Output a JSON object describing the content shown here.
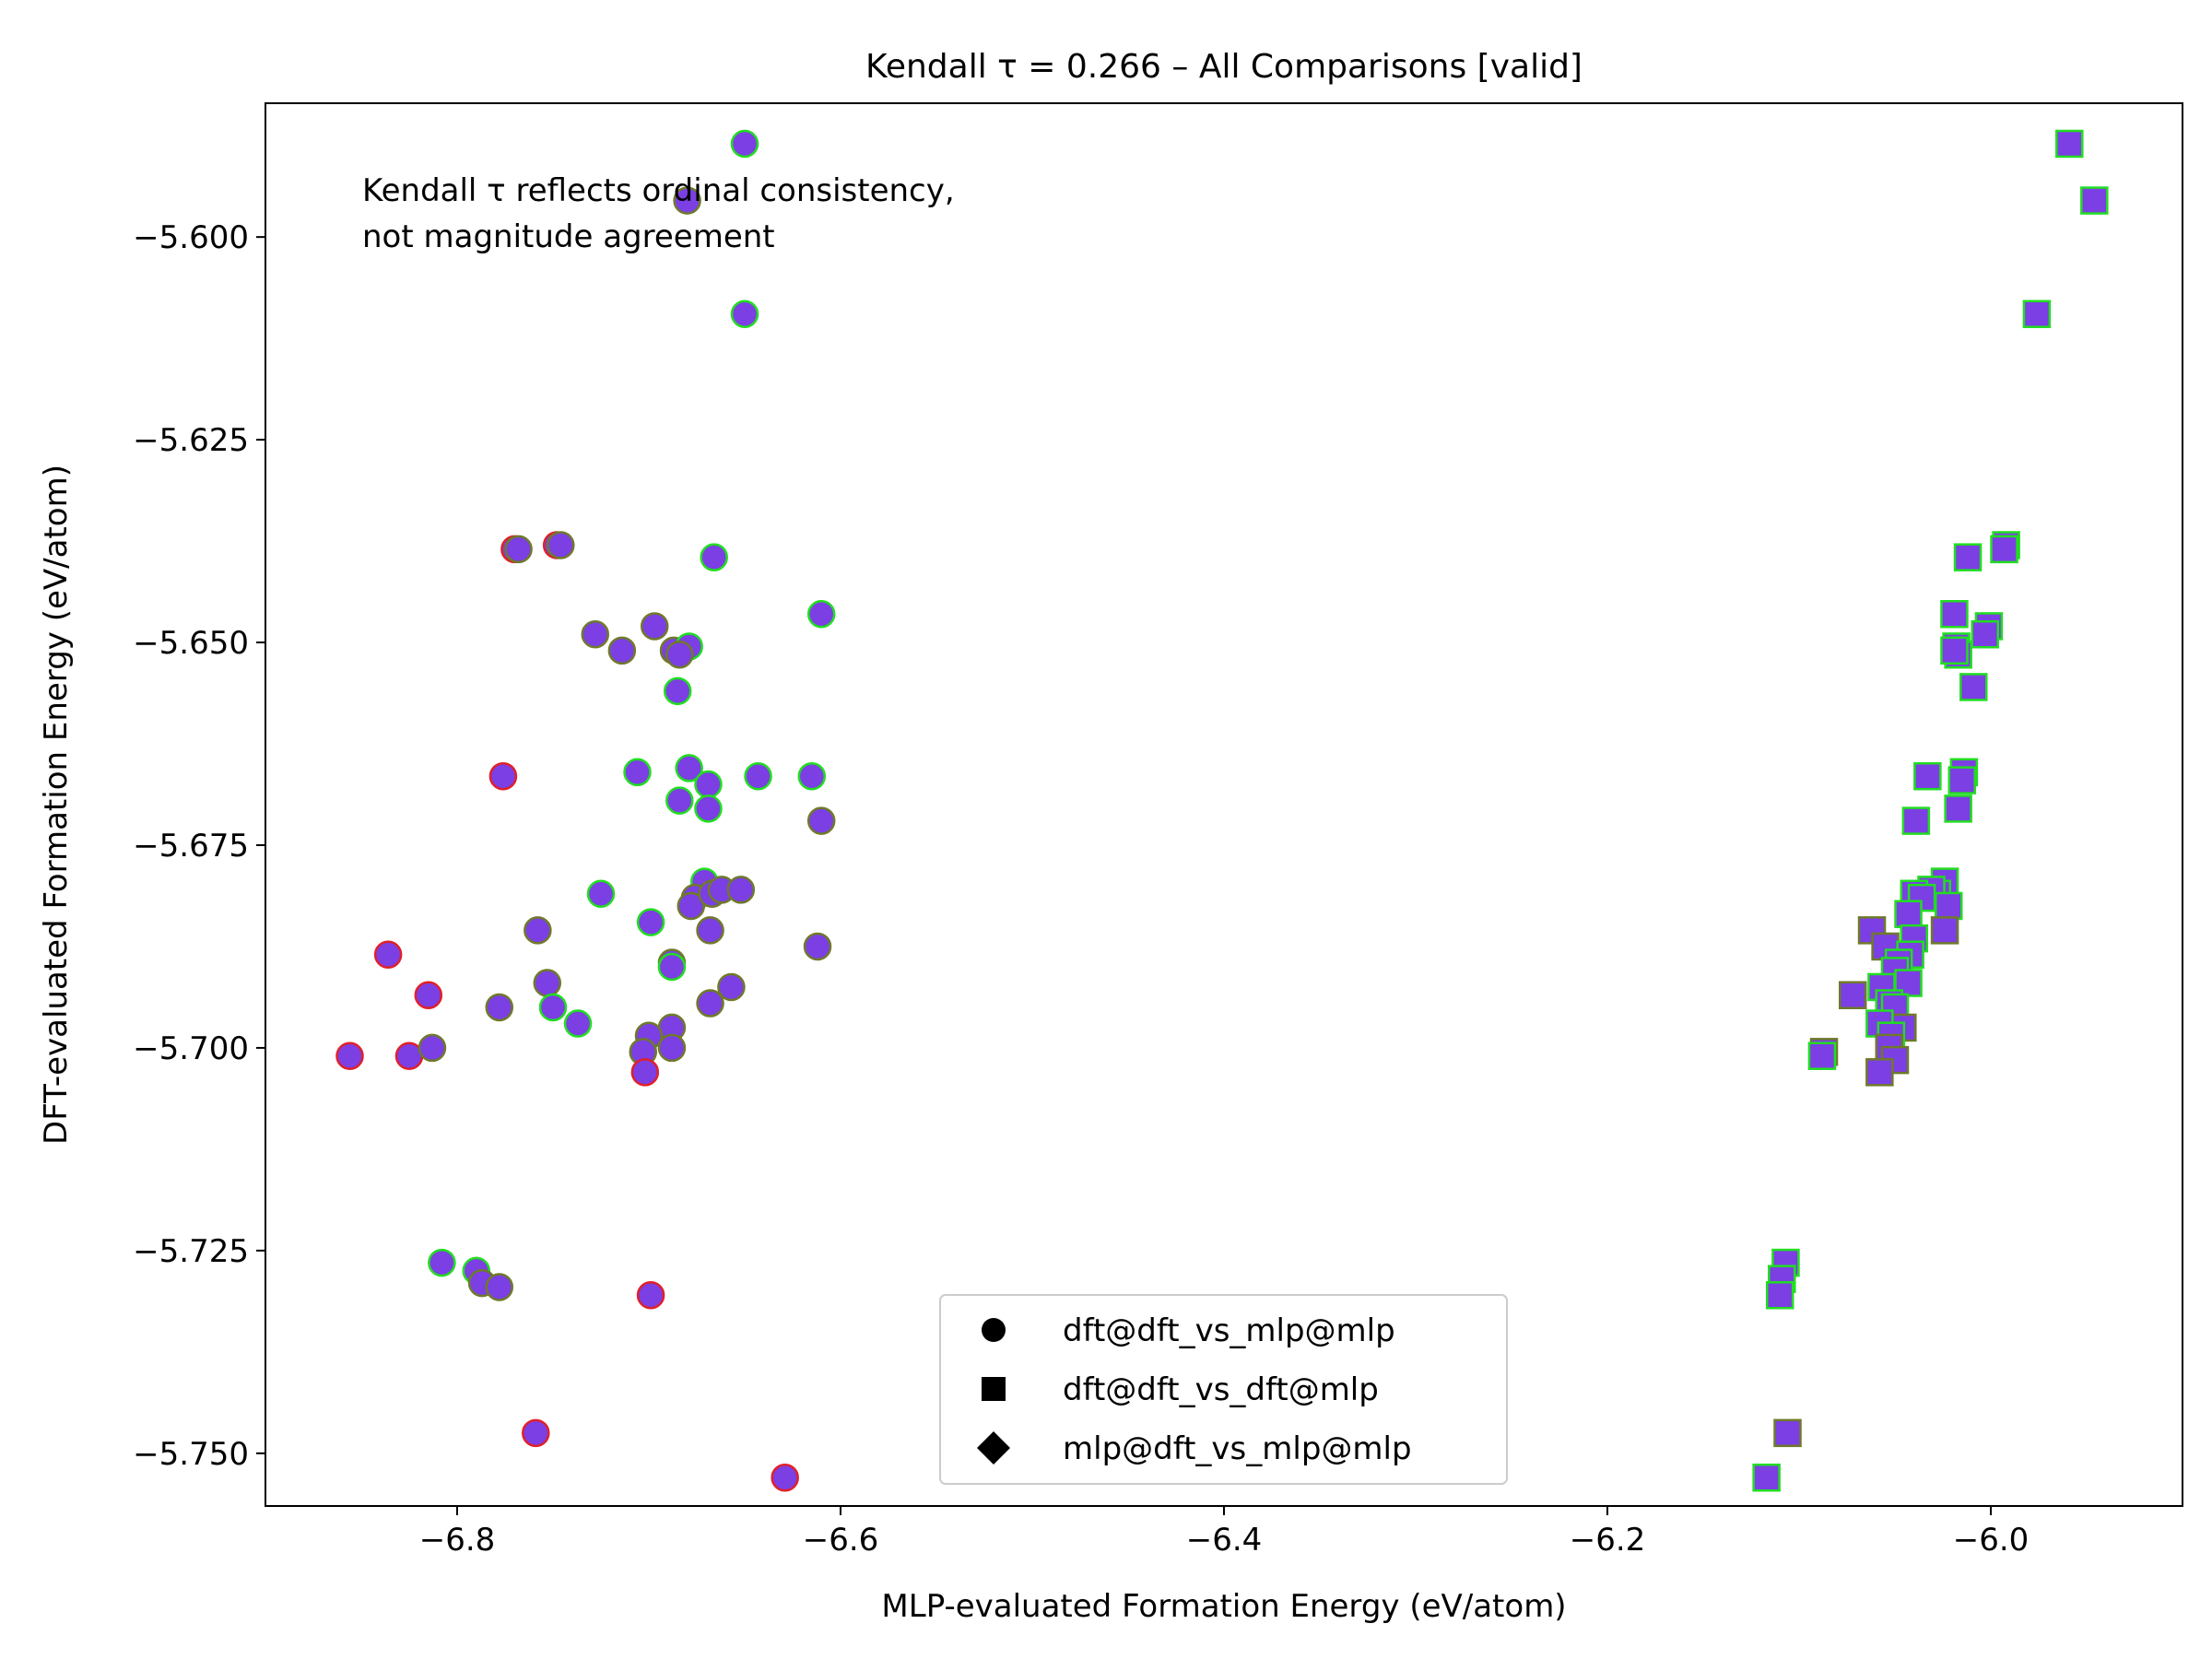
{
  "chart_data": {
    "type": "scatter",
    "title": "Kendall τ = 0.266 – All Comparisons [valid]",
    "xlabel": "MLP-evaluated Formation Energy (eV/atom)",
    "ylabel": "DFT-evaluated Formation Energy (eV/atom)",
    "xlim": [
      -6.9,
      -5.9
    ],
    "ylim": [
      -5.7565,
      -5.5835
    ],
    "xticks": [
      -6.8,
      -6.6,
      -6.4,
      -6.2,
      -6.0
    ],
    "xtick_labels": [
      "−6.8",
      "−6.6",
      "−6.4",
      "−6.2",
      "−6.0"
    ],
    "yticks": [
      -5.6,
      -5.625,
      -5.65,
      -5.675,
      -5.7,
      -5.725,
      -5.75
    ],
    "ytick_labels": [
      "−5.600",
      "−5.625",
      "−5.650",
      "−5.675",
      "−5.700",
      "−5.725",
      "−5.750"
    ],
    "grid": false,
    "legend_position": "bottom-center",
    "annotation": [
      "Kendall τ reflects ordinal consistency,",
      "not magnitude agreement"
    ],
    "fill_color": "#7b3fe4",
    "edge_colors": {
      "green": "#22dd22",
      "olive": "#6f7a2a",
      "red": "#e0202a"
    },
    "series": [
      {
        "name": "dft@dft_vs_mlp@mlp",
        "marker": "circle",
        "points": [
          [
            -6.65,
            -5.5885,
            "green"
          ],
          [
            -6.68,
            -5.5955,
            "olive"
          ],
          [
            -6.65,
            -5.6095,
            "green"
          ],
          [
            -6.77,
            -5.6385,
            "red"
          ],
          [
            -6.768,
            -5.6385,
            "olive"
          ],
          [
            -6.748,
            -5.638,
            "red"
          ],
          [
            -6.746,
            -5.638,
            "olive"
          ],
          [
            -6.666,
            -5.6395,
            "green"
          ],
          [
            -6.61,
            -5.6465,
            "green"
          ],
          [
            -6.728,
            -5.649,
            "olive"
          ],
          [
            -6.714,
            -5.651,
            "olive"
          ],
          [
            -6.697,
            -5.648,
            "olive"
          ],
          [
            -6.687,
            -5.651,
            "olive"
          ],
          [
            -6.679,
            -5.6505,
            "green"
          ],
          [
            -6.684,
            -5.6515,
            "olive"
          ],
          [
            -6.685,
            -5.656,
            "green"
          ],
          [
            -6.776,
            -5.6665,
            "red"
          ],
          [
            -6.706,
            -5.666,
            "green"
          ],
          [
            -6.679,
            -5.6655,
            "green"
          ],
          [
            -6.669,
            -5.6675,
            "green"
          ],
          [
            -6.684,
            -5.6695,
            "green"
          ],
          [
            -6.669,
            -5.6705,
            "green"
          ],
          [
            -6.643,
            -5.6665,
            "green"
          ],
          [
            -6.615,
            -5.6665,
            "green"
          ],
          [
            -6.61,
            -5.672,
            "olive"
          ],
          [
            -6.725,
            -5.681,
            "green"
          ],
          [
            -6.671,
            -5.6795,
            "green"
          ],
          [
            -6.676,
            -5.6815,
            "olive"
          ],
          [
            -6.678,
            -5.6825,
            "olive"
          ],
          [
            -6.667,
            -5.681,
            "olive"
          ],
          [
            -6.662,
            -5.6805,
            "olive"
          ],
          [
            -6.652,
            -5.6805,
            "olive"
          ],
          [
            -6.699,
            -5.6845,
            "green"
          ],
          [
            -6.668,
            -5.6855,
            "olive"
          ],
          [
            -6.758,
            -5.6855,
            "olive"
          ],
          [
            -6.612,
            -5.6875,
            "olive"
          ],
          [
            -6.836,
            -5.6885,
            "red"
          ],
          [
            -6.815,
            -5.6935,
            "red"
          ],
          [
            -6.688,
            -5.6895,
            "olive"
          ],
          [
            -6.688,
            -5.69,
            "green"
          ],
          [
            -6.753,
            -5.692,
            "olive"
          ],
          [
            -6.75,
            -5.695,
            "green"
          ],
          [
            -6.737,
            -5.697,
            "green"
          ],
          [
            -6.778,
            -5.695,
            "olive"
          ],
          [
            -6.668,
            -5.6945,
            "olive"
          ],
          [
            -6.657,
            -5.6925,
            "olive"
          ],
          [
            -6.688,
            -5.6975,
            "olive"
          ],
          [
            -6.7,
            -5.6985,
            "olive"
          ],
          [
            -6.703,
            -5.7005,
            "olive"
          ],
          [
            -6.702,
            -5.703,
            "red"
          ],
          [
            -6.688,
            -5.7,
            "olive"
          ],
          [
            -6.856,
            -5.701,
            "red"
          ],
          [
            -6.825,
            -5.701,
            "red"
          ],
          [
            -6.813,
            -5.7,
            "olive"
          ],
          [
            -6.808,
            -5.7265,
            "green"
          ],
          [
            -6.79,
            -5.7275,
            "green"
          ],
          [
            -6.787,
            -5.729,
            "olive"
          ],
          [
            -6.778,
            -5.7295,
            "olive"
          ],
          [
            -6.699,
            -5.7305,
            "red"
          ],
          [
            -6.759,
            -5.7475,
            "red"
          ],
          [
            -6.629,
            -5.753,
            "red"
          ]
        ]
      },
      {
        "name": "dft@dft_vs_dft@mlp",
        "marker": "square",
        "points": [
          [
            -5.959,
            -5.5885,
            "green"
          ],
          [
            -5.946,
            -5.5955,
            "green"
          ],
          [
            -5.976,
            -5.6095,
            "green"
          ],
          [
            -5.992,
            -5.638,
            "green"
          ],
          [
            -5.993,
            -5.6385,
            "green"
          ],
          [
            -6.012,
            -5.6395,
            "green"
          ],
          [
            -6.019,
            -5.6465,
            "green"
          ],
          [
            -6.001,
            -5.648,
            "green"
          ],
          [
            -6.003,
            -5.649,
            "green"
          ],
          [
            -6.018,
            -5.6505,
            "green"
          ],
          [
            -6.017,
            -5.6515,
            "green"
          ],
          [
            -6.019,
            -5.651,
            "green"
          ],
          [
            -6.009,
            -5.6555,
            "green"
          ],
          [
            -6.014,
            -5.666,
            "green"
          ],
          [
            -6.015,
            -5.667,
            "green"
          ],
          [
            -6.033,
            -5.6665,
            "green"
          ],
          [
            -6.017,
            -5.6705,
            "green"
          ],
          [
            -6.039,
            -5.672,
            "green"
          ],
          [
            -6.024,
            -5.6795,
            "green"
          ],
          [
            -6.028,
            -5.681,
            "green"
          ],
          [
            -6.031,
            -5.6805,
            "green"
          ],
          [
            -6.04,
            -5.681,
            "green"
          ],
          [
            -6.022,
            -5.6825,
            "green"
          ],
          [
            -6.036,
            -5.6815,
            "green"
          ],
          [
            -6.043,
            -5.6835,
            "green"
          ],
          [
            -6.024,
            -5.6855,
            "olive"
          ],
          [
            -6.062,
            -5.6855,
            "olive"
          ],
          [
            -6.04,
            -5.6865,
            "green"
          ],
          [
            -6.055,
            -5.6875,
            "olive"
          ],
          [
            -6.042,
            -5.6885,
            "green"
          ],
          [
            -6.048,
            -5.6895,
            "green"
          ],
          [
            -6.05,
            -5.6905,
            "green"
          ],
          [
            -6.043,
            -5.692,
            "green"
          ],
          [
            -6.057,
            -5.6925,
            "green"
          ],
          [
            -6.072,
            -5.6935,
            "olive"
          ],
          [
            -6.053,
            -5.6945,
            "green"
          ],
          [
            -6.05,
            -5.695,
            "green"
          ],
          [
            -6.046,
            -5.6975,
            "olive"
          ],
          [
            -6.058,
            -5.697,
            "green"
          ],
          [
            -6.052,
            -5.6985,
            "green"
          ],
          [
            -6.053,
            -5.7,
            "olive"
          ],
          [
            -6.087,
            -5.7005,
            "olive"
          ],
          [
            -6.088,
            -5.701,
            "green"
          ],
          [
            -6.05,
            -5.7015,
            "olive"
          ],
          [
            -6.058,
            -5.703,
            "olive"
          ],
          [
            -6.107,
            -5.7265,
            "green"
          ],
          [
            -6.109,
            -5.7285,
            "green"
          ],
          [
            -6.11,
            -5.7305,
            "green"
          ],
          [
            -6.106,
            -5.7475,
            "olive"
          ],
          [
            -6.117,
            -5.753,
            "green"
          ]
        ]
      },
      {
        "name": "mlp@dft_vs_mlp@mlp",
        "marker": "diamond",
        "points": []
      }
    ]
  }
}
